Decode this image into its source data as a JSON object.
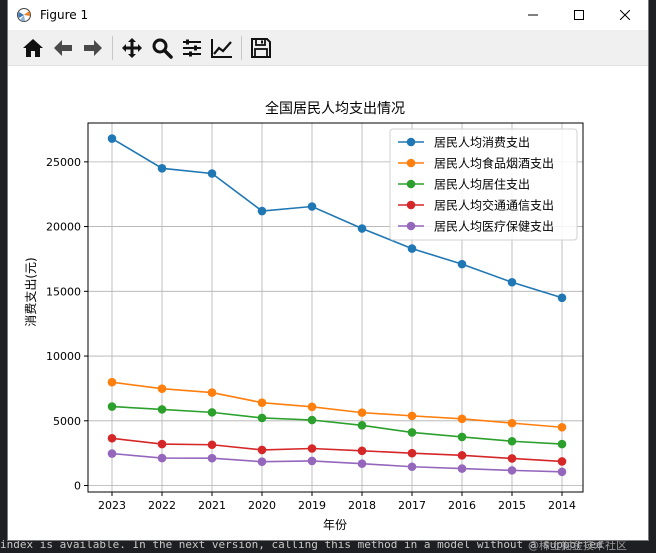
{
  "window": {
    "title": "Figure 1",
    "minimize_icon": "minimize-icon",
    "maximize_icon": "maximize-icon",
    "close_icon": "close-icon"
  },
  "toolbar": {
    "buttons": [
      {
        "name": "home-icon",
        "tooltip": "Home"
      },
      {
        "name": "back-arrow-icon",
        "tooltip": "Back"
      },
      {
        "name": "forward-arrow-icon",
        "tooltip": "Forward"
      },
      {
        "name": "pan-icon",
        "tooltip": "Pan"
      },
      {
        "name": "zoom-icon",
        "tooltip": "Zoom"
      },
      {
        "name": "subplots-icon",
        "tooltip": "Subplots"
      },
      {
        "name": "edit-axis-icon",
        "tooltip": "Customize"
      },
      {
        "name": "save-icon",
        "tooltip": "Save"
      }
    ]
  },
  "background": {
    "bottom_text": "index is available. In the next version, calling this method in a model without a supported",
    "watermark": "@稀土掘金技术社区"
  },
  "chart_data": {
    "type": "line",
    "title": "全国居民人均支出情况",
    "xlabel": "年份",
    "ylabel": "消费支出(元)",
    "categories": [
      "2023",
      "2022",
      "2021",
      "2020",
      "2019",
      "2018",
      "2017",
      "2016",
      "2015",
      "2014"
    ],
    "ylim": [
      -500,
      28000
    ],
    "yticks": [
      0,
      5000,
      10000,
      15000,
      20000,
      25000
    ],
    "ytick_labels": [
      "0",
      "5000",
      "10000",
      "15000",
      "20000",
      "25000"
    ],
    "grid": true,
    "legend_position": "top-right",
    "series": [
      {
        "name": "居民人均消费支出",
        "color": "#1f77b4",
        "values": [
          26800,
          24500,
          24100,
          21200,
          21550,
          19850,
          18300,
          17100,
          15700,
          14500
        ]
      },
      {
        "name": "居民人均食品烟酒支出",
        "color": "#ff7f0e",
        "values": [
          7980,
          7480,
          7180,
          6400,
          6080,
          5630,
          5380,
          5150,
          4820,
          4500
        ]
      },
      {
        "name": "居民人均居住支出",
        "color": "#2ca02c",
        "values": [
          6100,
          5880,
          5650,
          5220,
          5060,
          4650,
          4100,
          3750,
          3420,
          3200
        ]
      },
      {
        "name": "居民人均交通通信支出",
        "color": "#d62728",
        "values": [
          3650,
          3200,
          3150,
          2750,
          2860,
          2680,
          2500,
          2330,
          2090,
          1860
        ]
      },
      {
        "name": "居民人均医疗保健支出",
        "color": "#9467bd",
        "values": [
          2470,
          2120,
          2110,
          1840,
          1900,
          1690,
          1450,
          1310,
          1170,
          1060
        ]
      }
    ]
  }
}
